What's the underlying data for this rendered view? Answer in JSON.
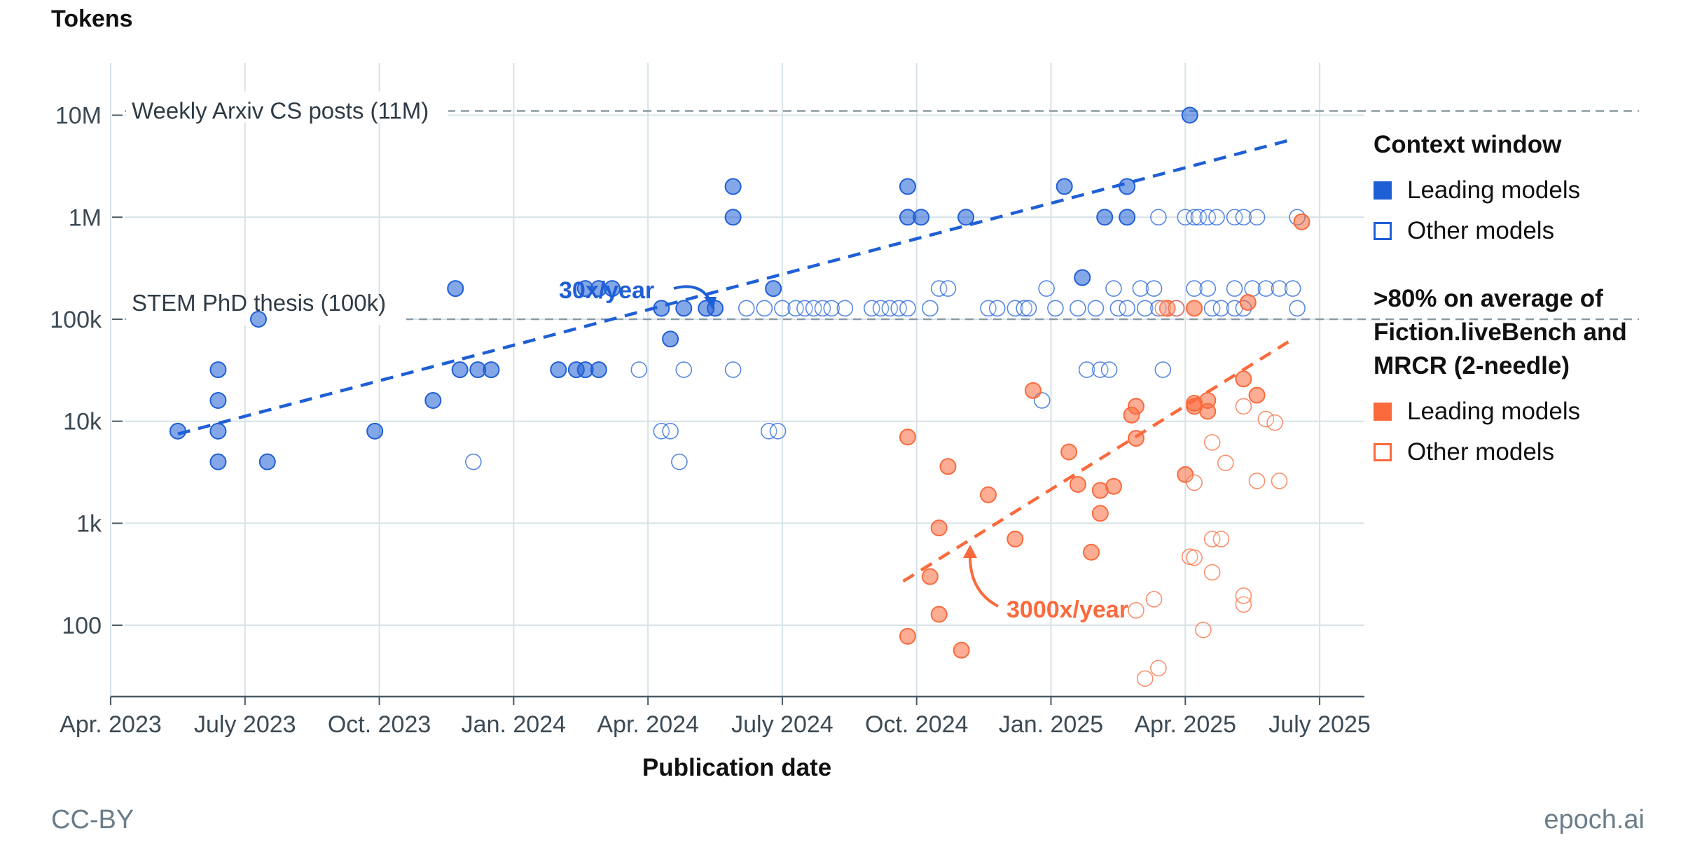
{
  "chart_data": {
    "type": "scatter",
    "title": "",
    "ylabel": "Tokens",
    "xlabel": "Publication date",
    "yscale": "log",
    "ylim": [
      20,
      30000000
    ],
    "xlim": [
      0,
      28
    ],
    "x_units": "months since Apr. 2023",
    "x_ticks": [
      {
        "value": 0,
        "label": "Apr. 2023"
      },
      {
        "value": 3,
        "label": "July 2023"
      },
      {
        "value": 6,
        "label": "Oct. 2023"
      },
      {
        "value": 9,
        "label": "Jan. 2024"
      },
      {
        "value": 12,
        "label": "Apr. 2024"
      },
      {
        "value": 15,
        "label": "July 2024"
      },
      {
        "value": 18,
        "label": "Oct. 2024"
      },
      {
        "value": 21,
        "label": "Jan. 2025"
      },
      {
        "value": 24,
        "label": "Apr. 2025"
      },
      {
        "value": 27,
        "label": "July 2025"
      }
    ],
    "y_ticks": [
      {
        "value": 100,
        "label": "100"
      },
      {
        "value": 1000,
        "label": "1k"
      },
      {
        "value": 10000,
        "label": "10k"
      },
      {
        "value": 100000,
        "label": "100k"
      },
      {
        "value": 1000000,
        "label": "1M"
      },
      {
        "value": 10000000,
        "label": "10M"
      }
    ],
    "reference_lines": [
      {
        "y": 11000000,
        "label": "Weekly Arxiv CS posts (11M)"
      },
      {
        "y": 100000,
        "label": "STEM PhD thesis (100k)"
      }
    ],
    "series": [
      {
        "name": "Context window — Leading models",
        "color": "#1f5fd6",
        "filled": true,
        "points": [
          [
            1.5,
            8000
          ],
          [
            2.4,
            32000
          ],
          [
            2.4,
            16000
          ],
          [
            2.4,
            8000
          ],
          [
            2.4,
            4000
          ],
          [
            3.3,
            100000
          ],
          [
            3.5,
            4000
          ],
          [
            5.9,
            8000
          ],
          [
            7.2,
            16000
          ],
          [
            7.7,
            200000
          ],
          [
            7.8,
            32000
          ],
          [
            8.2,
            32000
          ],
          [
            8.5,
            32000
          ],
          [
            10.0,
            32000
          ],
          [
            10.4,
            32000
          ],
          [
            10.6,
            32000
          ],
          [
            10.9,
            32000
          ],
          [
            10.6,
            200000
          ],
          [
            10.9,
            200000
          ],
          [
            11.2,
            200000
          ],
          [
            12.3,
            128000
          ],
          [
            12.5,
            64000
          ],
          [
            12.8,
            128000
          ],
          [
            13.3,
            128000
          ],
          [
            13.5,
            128000
          ],
          [
            13.9,
            2000000
          ],
          [
            13.9,
            1000000
          ],
          [
            14.8,
            200000
          ],
          [
            17.8,
            2000000
          ],
          [
            17.8,
            1000000
          ],
          [
            18.1,
            1000000
          ],
          [
            19.1,
            1000000
          ],
          [
            21.3,
            2000000
          ],
          [
            21.7,
            256000
          ],
          [
            22.2,
            1000000
          ],
          [
            22.7,
            2000000
          ],
          [
            22.7,
            1000000
          ],
          [
            24.1,
            10000000
          ]
        ]
      },
      {
        "name": "Context window — Other models",
        "color": "#1f5fd6",
        "filled": false,
        "points": [
          [
            8.1,
            4000
          ],
          [
            11.8,
            32000
          ],
          [
            12.3,
            8000
          ],
          [
            12.5,
            8000
          ],
          [
            12.7,
            4000
          ],
          [
            12.8,
            32000
          ],
          [
            13.9,
            32000
          ],
          [
            14.2,
            128000
          ],
          [
            14.6,
            128000
          ],
          [
            14.7,
            8000
          ],
          [
            14.9,
            8000
          ],
          [
            15.0,
            128000
          ],
          [
            15.3,
            128000
          ],
          [
            15.5,
            128000
          ],
          [
            15.7,
            128000
          ],
          [
            15.9,
            128000
          ],
          [
            16.1,
            128000
          ],
          [
            16.4,
            128000
          ],
          [
            17.0,
            128000
          ],
          [
            17.2,
            128000
          ],
          [
            17.4,
            128000
          ],
          [
            17.6,
            128000
          ],
          [
            17.8,
            128000
          ],
          [
            18.3,
            128000
          ],
          [
            18.5,
            200000
          ],
          [
            18.7,
            200000
          ],
          [
            19.6,
            128000
          ],
          [
            19.8,
            128000
          ],
          [
            20.2,
            128000
          ],
          [
            20.4,
            128000
          ],
          [
            20.5,
            128000
          ],
          [
            20.8,
            16000
          ],
          [
            20.9,
            200000
          ],
          [
            21.1,
            128000
          ],
          [
            21.6,
            128000
          ],
          [
            21.8,
            32000
          ],
          [
            22.0,
            128000
          ],
          [
            22.1,
            32000
          ],
          [
            22.3,
            32000
          ],
          [
            22.4,
            200000
          ],
          [
            22.5,
            128000
          ],
          [
            22.7,
            128000
          ],
          [
            23.0,
            200000
          ],
          [
            23.1,
            128000
          ],
          [
            23.3,
            200000
          ],
          [
            23.4,
            128000
          ],
          [
            23.6,
            128000
          ],
          [
            23.8,
            128000
          ],
          [
            23.4,
            1000000
          ],
          [
            23.5,
            32000
          ],
          [
            24.0,
            1000000
          ],
          [
            24.2,
            1000000
          ],
          [
            24.3,
            1000000
          ],
          [
            24.5,
            1000000
          ],
          [
            24.7,
            1000000
          ],
          [
            24.2,
            200000
          ],
          [
            24.5,
            200000
          ],
          [
            24.6,
            128000
          ],
          [
            24.8,
            128000
          ],
          [
            25.1,
            128000
          ],
          [
            25.3,
            128000
          ],
          [
            25.1,
            1000000
          ],
          [
            25.3,
            1000000
          ],
          [
            25.6,
            1000000
          ],
          [
            25.1,
            200000
          ],
          [
            25.5,
            200000
          ],
          [
            25.8,
            200000
          ],
          [
            26.1,
            200000
          ],
          [
            26.4,
            200000
          ],
          [
            26.5,
            1000000
          ],
          [
            26.5,
            128000
          ]
        ]
      },
      {
        "name": ">80% on average of Fiction.liveBench and MRCR (2-needle) — Leading models",
        "color": "#fa6a3c",
        "filled": true,
        "points": [
          [
            17.8,
            7000
          ],
          [
            17.8,
            78
          ],
          [
            18.3,
            300
          ],
          [
            18.5,
            900
          ],
          [
            18.5,
            128
          ],
          [
            18.7,
            3600
          ],
          [
            19.0,
            57
          ],
          [
            19.6,
            1900
          ],
          [
            20.2,
            700
          ],
          [
            20.6,
            20000
          ],
          [
            21.4,
            5000
          ],
          [
            21.6,
            2400
          ],
          [
            21.9,
            520
          ],
          [
            22.1,
            2100
          ],
          [
            22.1,
            1250
          ],
          [
            22.4,
            2300
          ],
          [
            22.8,
            11500
          ],
          [
            22.9,
            14000
          ],
          [
            22.9,
            6800
          ],
          [
            23.6,
            128000
          ],
          [
            24.0,
            3000
          ],
          [
            24.2,
            15000
          ],
          [
            24.2,
            14000
          ],
          [
            24.5,
            16000
          ],
          [
            24.5,
            12500
          ],
          [
            24.2,
            128000
          ],
          [
            25.3,
            26000
          ],
          [
            25.4,
            146000
          ],
          [
            25.6,
            18000
          ],
          [
            26.6,
            900000
          ]
        ]
      },
      {
        "name": ">80% on average of Fiction.liveBench and MRCR (2-needle) — Other models",
        "color": "#fa6a3c",
        "filled": false,
        "points": [
          [
            22.9,
            140
          ],
          [
            23.3,
            180
          ],
          [
            23.4,
            38
          ],
          [
            23.1,
            30
          ],
          [
            23.5,
            128000
          ],
          [
            23.8,
            128000
          ],
          [
            24.1,
            470
          ],
          [
            24.2,
            2500
          ],
          [
            24.2,
            460
          ],
          [
            24.4,
            90
          ],
          [
            24.6,
            330
          ],
          [
            24.6,
            6200
          ],
          [
            24.6,
            700
          ],
          [
            24.9,
            3900
          ],
          [
            24.8,
            700
          ],
          [
            25.3,
            160
          ],
          [
            25.3,
            195
          ],
          [
            25.3,
            14000
          ],
          [
            25.6,
            2600
          ],
          [
            25.8,
            10500
          ],
          [
            26.0,
            9700
          ],
          [
            26.1,
            2600
          ]
        ]
      }
    ],
    "trend_lines": [
      {
        "label": "30x/year",
        "color": "#1f5fd6",
        "from": [
          1.5,
          7500
        ],
        "to": [
          26.4,
          5800000
        ]
      },
      {
        "label": "3000x/year",
        "color": "#fa6a3c",
        "from": [
          17.7,
          270
        ],
        "to": [
          26.3,
          60000
        ]
      }
    ],
    "legend": {
      "position": "right",
      "group1_title": "Context window",
      "group2_title_lines": [
        ">80% on average of",
        "Fiction.liveBench and",
        "MRCR (2-needle)"
      ],
      "leading_label": "Leading models",
      "other_label": "Other models"
    }
  },
  "footer": {
    "license": "CC-BY",
    "source": "epoch.ai"
  },
  "colors": {
    "blue": "#1f5fd6",
    "orange": "#fa6a3c",
    "grid": "#d6e2e8",
    "axis": "#4a5a66"
  }
}
